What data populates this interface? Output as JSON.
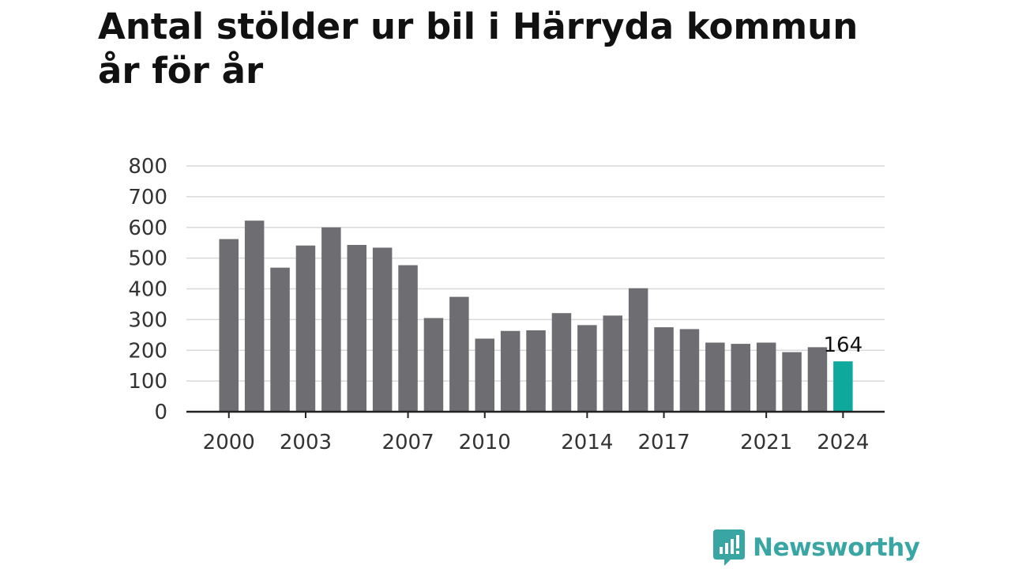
{
  "chart_data": {
    "type": "bar",
    "title_lines": [
      "Antal stölder ur bil i Härryda kommun",
      "år för år"
    ],
    "xlabel": "",
    "ylabel": "",
    "ylim": [
      0,
      800
    ],
    "yticks": [
      0,
      100,
      200,
      300,
      400,
      500,
      600,
      700,
      800
    ],
    "xtick_labels": [
      "2000",
      "2003",
      "2007",
      "2010",
      "2014",
      "2017",
      "2021",
      "2024"
    ],
    "grid": true,
    "legend": "none",
    "categories": [
      2000,
      2001,
      2002,
      2003,
      2004,
      2005,
      2006,
      2007,
      2008,
      2009,
      2010,
      2011,
      2012,
      2013,
      2014,
      2015,
      2016,
      2017,
      2018,
      2019,
      2020,
      2021,
      2022,
      2023,
      2024
    ],
    "values": [
      562,
      622,
      469,
      541,
      600,
      543,
      534,
      477,
      305,
      374,
      238,
      263,
      265,
      321,
      282,
      313,
      402,
      275,
      269,
      225,
      221,
      225,
      194,
      210,
      164
    ],
    "highlight": {
      "category": 2024,
      "label": "164"
    },
    "colors": {
      "bar": "#6e6d72",
      "highlight": "#0fa89c",
      "grid": "#d9d9d9",
      "axis": "#222222"
    }
  },
  "brand": {
    "name": "Newsworthy",
    "logo_icon": "chat-bubble-bar-chart-icon",
    "color": "#3aa6a4"
  }
}
